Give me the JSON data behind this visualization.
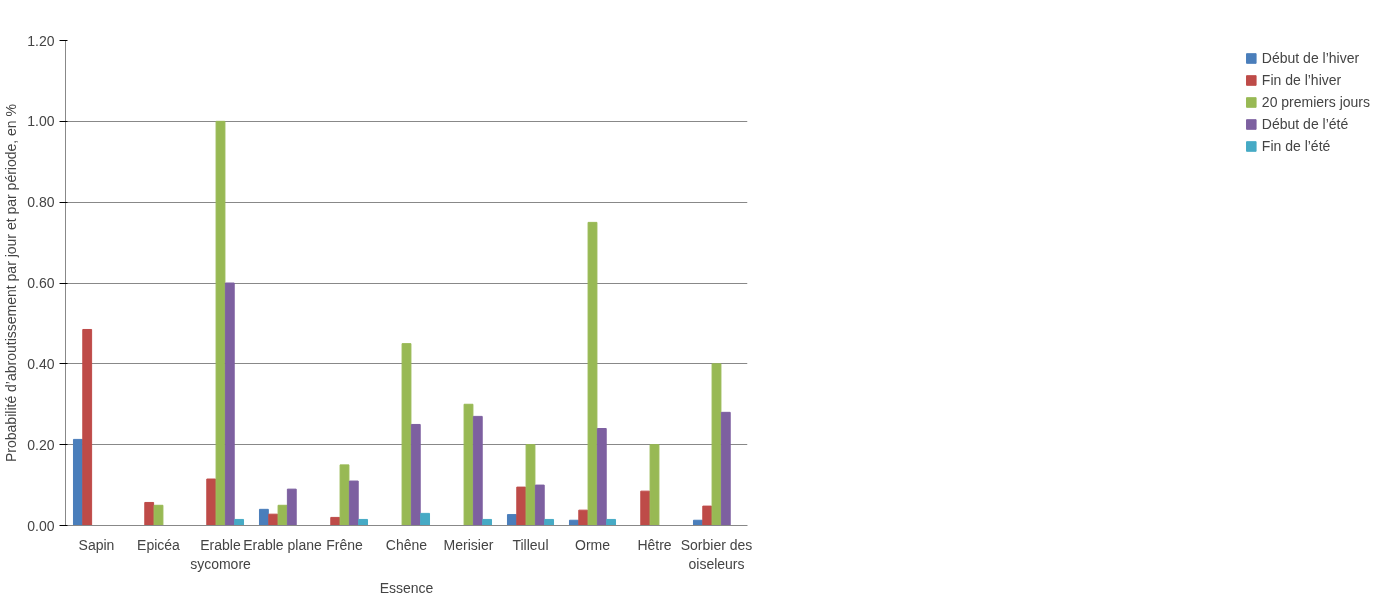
{
  "chart_data": {
    "type": "bar",
    "xlabel": "Essence",
    "ylabel": "Probabilité d’abroutissement par jour et par période, en %",
    "categories": [
      "Sapin",
      "Epicéa",
      "Erable sycomore",
      "Erable plane",
      "Frêne",
      "Chêne",
      "Merisier",
      "Tilleul",
      "Orme",
      "Hêtre",
      "Sorbier des oiseleurs"
    ],
    "series": [
      {
        "name": "Début de l’hiver",
        "color": "#4a7ebb",
        "values": [
          0.213,
          null,
          null,
          0.04,
          null,
          null,
          null,
          0.027,
          0.013,
          null,
          0.013
        ]
      },
      {
        "name": "Fin de l’hiver",
        "color": "#be4b48",
        "values": [
          0.485,
          0.057,
          0.115,
          0.028,
          0.02,
          null,
          null,
          0.095,
          0.038,
          0.085,
          0.048
        ]
      },
      {
        "name": "20 premiers jours",
        "color": "#98b954",
        "values": [
          null,
          0.05,
          1.0,
          0.05,
          0.15,
          0.45,
          0.3,
          0.2,
          0.75,
          0.2,
          0.4
        ]
      },
      {
        "name": "Début de l’été",
        "color": "#7d60a0",
        "values": [
          null,
          null,
          0.6,
          0.09,
          0.11,
          0.25,
          0.27,
          0.1,
          0.24,
          null,
          0.28
        ]
      },
      {
        "name": "Fin de l’été",
        "color": "#46aac5",
        "values": [
          null,
          null,
          0.015,
          null,
          0.015,
          0.03,
          0.015,
          0.015,
          0.015,
          null,
          null
        ]
      }
    ],
    "ylim": [
      0,
      1.2
    ],
    "yticks": [
      {
        "value": 0,
        "label": "0.00"
      },
      {
        "value": 0.2,
        "label": "0.20"
      },
      {
        "value": 0.4,
        "label": "0.40"
      },
      {
        "value": 0.6,
        "label": "0.60"
      },
      {
        "value": 0.8,
        "label": "0.80"
      },
      {
        "value": 1.0,
        "label": "1.00"
      },
      {
        "value": 1.2,
        "label": "1.20"
      }
    ],
    "grid": "y",
    "legend": "right"
  }
}
